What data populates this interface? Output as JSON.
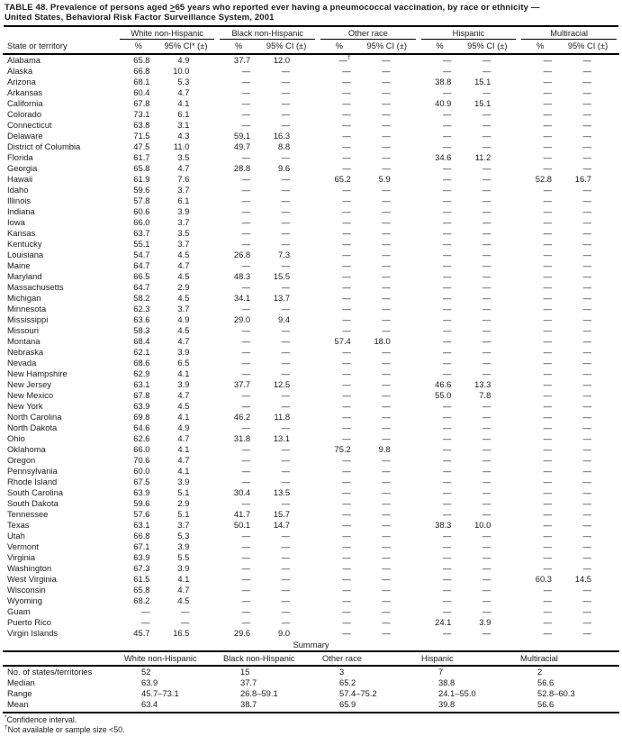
{
  "page_title": {
    "line1_pre": "TABLE 48. Prevalence of persons aged ",
    "line1_geq": ">",
    "line1_post": "65 years who reported ever having a pneumococcal vaccination, by race or ethnicity —",
    "line2": "United States, Behavioral Risk Factor Surveillance System, 2001"
  },
  "table": {
    "state_col_header": "State or territory",
    "groups": [
      {
        "label": "White non-Hispanic",
        "pct": "%",
        "ci": "95% CI* (±)"
      },
      {
        "label": "Black non-Hispanic",
        "pct": "%",
        "ci": "95% CI (±)"
      },
      {
        "label": "Other race",
        "pct": "%",
        "ci": "95% CI (±)"
      },
      {
        "label": "Hispanic",
        "pct": "%",
        "ci": "95% CI (±)"
      },
      {
        "label": "Multiracial",
        "pct": "%",
        "ci": "95% CI (±)"
      }
    ],
    "rows": [
      {
        "state": "Alabama",
        "values": [
          "65.8",
          "4.9",
          "37.7",
          "12.0",
          "—†",
          "—",
          "—",
          "—",
          "—",
          "—"
        ]
      },
      {
        "state": "Alaska",
        "values": [
          "66.8",
          "10.0",
          "—",
          "—",
          "—",
          "—",
          "—",
          "—",
          "—",
          "—"
        ]
      },
      {
        "state": "Arizona",
        "values": [
          "68.1",
          "5.3",
          "—",
          "—",
          "—",
          "—",
          "38.8",
          "15.1",
          "—",
          "—"
        ]
      },
      {
        "state": "Arkansas",
        "values": [
          "60.4",
          "4.7",
          "—",
          "—",
          "—",
          "—",
          "—",
          "—",
          "—",
          "—"
        ]
      },
      {
        "state": "California",
        "values": [
          "67.8",
          "4.1",
          "—",
          "—",
          "—",
          "—",
          "40.9",
          "15.1",
          "—",
          "—"
        ]
      },
      {
        "state": "Colorado",
        "values": [
          "73.1",
          "6.1",
          "—",
          "—",
          "—",
          "—",
          "—",
          "—",
          "—",
          "—"
        ]
      },
      {
        "state": "Connecticut",
        "values": [
          "63.8",
          "3.1",
          "—",
          "—",
          "—",
          "—",
          "—",
          "—",
          "—",
          "—"
        ]
      },
      {
        "state": "Delaware",
        "values": [
          "71.5",
          "4.3",
          "59.1",
          "16.3",
          "—",
          "—",
          "—",
          "—",
          "—",
          "—"
        ]
      },
      {
        "state": "District of Columbia",
        "values": [
          "47.5",
          "11.0",
          "49.7",
          "8.8",
          "—",
          "—",
          "—",
          "—",
          "—",
          "—"
        ]
      },
      {
        "state": "Florida",
        "values": [
          "61.7",
          "3.5",
          "—",
          "—",
          "—",
          "—",
          "34.6",
          "11.2",
          "—",
          "—"
        ]
      },
      {
        "state": "Georgia",
        "values": [
          "65.8",
          "4.7",
          "28.8",
          "9.6",
          "—",
          "—",
          "—",
          "—",
          "—",
          "—"
        ]
      },
      {
        "state": "Hawaii",
        "values": [
          "61.9",
          "7.6",
          "—",
          "—",
          "65.2",
          "5.9",
          "—",
          "—",
          "52.8",
          "16.7"
        ]
      },
      {
        "state": "Idaho",
        "values": [
          "59.6",
          "3.7",
          "—",
          "—",
          "—",
          "—",
          "—",
          "—",
          "—",
          "—"
        ]
      },
      {
        "state": "Illinois",
        "values": [
          "57.8",
          "6.1",
          "—",
          "—",
          "—",
          "—",
          "—",
          "—",
          "—",
          "—"
        ]
      },
      {
        "state": "Indiana",
        "values": [
          "60.6",
          "3.9",
          "—",
          "—",
          "—",
          "—",
          "—",
          "—",
          "—",
          "—"
        ]
      },
      {
        "state": "Iowa",
        "values": [
          "66.0",
          "3.7",
          "—",
          "—",
          "—",
          "—",
          "—",
          "—",
          "—",
          "—"
        ]
      },
      {
        "state": "Kansas",
        "values": [
          "63.7",
          "3.5",
          "—",
          "—",
          "—",
          "—",
          "—",
          "—",
          "—",
          "—"
        ]
      },
      {
        "state": "Kentucky",
        "values": [
          "55.1",
          "3.7",
          "—",
          "—",
          "—",
          "—",
          "—",
          "—",
          "—",
          "—"
        ]
      },
      {
        "state": "Louisiana",
        "values": [
          "54.7",
          "4.5",
          "26.8",
          "7.3",
          "—",
          "—",
          "—",
          "—",
          "—",
          "—"
        ]
      },
      {
        "state": "Maine",
        "values": [
          "64.7",
          "4.7",
          "—",
          "—",
          "—",
          "—",
          "—",
          "—",
          "—",
          "—"
        ]
      },
      {
        "state": "Maryland",
        "values": [
          "66.5",
          "4.5",
          "48.3",
          "15.5",
          "—",
          "—",
          "—",
          "—",
          "—",
          "—"
        ]
      },
      {
        "state": "Massachusetts",
        "values": [
          "64.7",
          "2.9",
          "—",
          "—",
          "—",
          "—",
          "—",
          "—",
          "—",
          "—"
        ]
      },
      {
        "state": "Michigan",
        "values": [
          "58.2",
          "4.5",
          "34.1",
          "13.7",
          "—",
          "—",
          "—",
          "—",
          "—",
          "—"
        ]
      },
      {
        "state": "Minnesota",
        "values": [
          "62.3",
          "3.7",
          "—",
          "—",
          "—",
          "—",
          "—",
          "—",
          "—",
          "—"
        ]
      },
      {
        "state": "Mississippi",
        "values": [
          "63.6",
          "4.9",
          "29.0",
          "9.4",
          "—",
          "—",
          "—",
          "—",
          "—",
          "—"
        ]
      },
      {
        "state": "Missouri",
        "values": [
          "58.3",
          "4.5",
          "—",
          "—",
          "—",
          "—",
          "—",
          "—",
          "—",
          "—"
        ]
      },
      {
        "state": "Montana",
        "values": [
          "68.4",
          "4.7",
          "—",
          "—",
          "57.4",
          "18.0",
          "—",
          "—",
          "—",
          "—"
        ]
      },
      {
        "state": "Nebraska",
        "values": [
          "62.1",
          "3.9",
          "—",
          "—",
          "—",
          "—",
          "—",
          "—",
          "—",
          "—"
        ]
      },
      {
        "state": "Nevada",
        "values": [
          "68.6",
          "6.5",
          "—",
          "—",
          "—",
          "—",
          "—",
          "—",
          "—",
          "—"
        ]
      },
      {
        "state": "New Hampshire",
        "values": [
          "62.9",
          "4.1",
          "—",
          "—",
          "—",
          "—",
          "—",
          "—",
          "—",
          "—"
        ]
      },
      {
        "state": "New Jersey",
        "values": [
          "63.1",
          "3.9",
          "37.7",
          "12.5",
          "—",
          "—",
          "46.6",
          "13.3",
          "—",
          "—"
        ]
      },
      {
        "state": "New Mexico",
        "values": [
          "67.8",
          "4.7",
          "—",
          "—",
          "—",
          "—",
          "55.0",
          "7.8",
          "—",
          "—"
        ]
      },
      {
        "state": "New York",
        "values": [
          "63.9",
          "4.5",
          "—",
          "—",
          "—",
          "—",
          "—",
          "—",
          "—",
          "—"
        ]
      },
      {
        "state": "North Carolina",
        "values": [
          "69.8",
          "4.1",
          "46.2",
          "11.8",
          "—",
          "—",
          "—",
          "—",
          "—",
          "—"
        ]
      },
      {
        "state": "North Dakota",
        "values": [
          "64.6",
          "4.9",
          "—",
          "—",
          "—",
          "—",
          "—",
          "—",
          "—",
          "—"
        ]
      },
      {
        "state": "Ohio",
        "values": [
          "62.6",
          "4.7",
          "31.8",
          "13.1",
          "—",
          "—",
          "—",
          "—",
          "—",
          "—"
        ]
      },
      {
        "state": "Oklahoma",
        "values": [
          "66.0",
          "4.1",
          "—",
          "—",
          "75.2",
          "9.8",
          "—",
          "—",
          "—",
          "—"
        ]
      },
      {
        "state": "Oregon",
        "values": [
          "70.6",
          "4.7",
          "—",
          "—",
          "—",
          "—",
          "—",
          "—",
          "—",
          "—"
        ]
      },
      {
        "state": "Pennsylvania",
        "values": [
          "60.0",
          "4.1",
          "—",
          "—",
          "—",
          "—",
          "—",
          "—",
          "—",
          "—"
        ]
      },
      {
        "state": "Rhode Island",
        "values": [
          "67.5",
          "3.9",
          "—",
          "—",
          "—",
          "—",
          "—",
          "—",
          "—",
          "—"
        ]
      },
      {
        "state": "South Carolina",
        "values": [
          "63.9",
          "5.1",
          "30.4",
          "13.5",
          "—",
          "—",
          "—",
          "—",
          "—",
          "—"
        ]
      },
      {
        "state": "South Dakota",
        "values": [
          "59.6",
          "2.9",
          "—",
          "—",
          "—",
          "—",
          "—",
          "—",
          "—",
          "—"
        ]
      },
      {
        "state": "Tennessee",
        "values": [
          "57.6",
          "5.1",
          "41.7",
          "15.7",
          "—",
          "—",
          "—",
          "—",
          "—",
          "—"
        ]
      },
      {
        "state": "Texas",
        "values": [
          "63.1",
          "3.7",
          "50.1",
          "14.7",
          "—",
          "—",
          "38.3",
          "10.0",
          "—",
          "—"
        ]
      },
      {
        "state": "Utah",
        "values": [
          "66.8",
          "5.3",
          "—",
          "—",
          "—",
          "—",
          "—",
          "—",
          "—",
          "—"
        ]
      },
      {
        "state": "Vermont",
        "values": [
          "67.1",
          "3.9",
          "—",
          "—",
          "—",
          "—",
          "—",
          "—",
          "—",
          "—"
        ]
      },
      {
        "state": "Virginia",
        "values": [
          "63.9",
          "5.5",
          "—",
          "—",
          "—",
          "—",
          "—",
          "—",
          "—",
          "—"
        ]
      },
      {
        "state": "Washington",
        "values": [
          "67.3",
          "3.9",
          "—",
          "—",
          "—",
          "—",
          "—",
          "—",
          "—",
          "—"
        ]
      },
      {
        "state": "West Virginia",
        "values": [
          "61.5",
          "4.1",
          "—",
          "—",
          "—",
          "—",
          "—",
          "—",
          "60.3",
          "14.5"
        ]
      },
      {
        "state": "Wisconsin",
        "values": [
          "65.8",
          "4.7",
          "—",
          "—",
          "—",
          "—",
          "—",
          "—",
          "—",
          "—"
        ]
      },
      {
        "state": "Wyoming",
        "values": [
          "68.2",
          "4.5",
          "—",
          "—",
          "—",
          "—",
          "—",
          "—",
          "—",
          "—"
        ]
      },
      {
        "state": "Guam",
        "values": [
          "—",
          "—",
          "—",
          "—",
          "—",
          "—",
          "—",
          "—",
          "—",
          "—"
        ]
      },
      {
        "state": "Puerto Rico",
        "values": [
          "—",
          "—",
          "—",
          "—",
          "—",
          "—",
          "24.1",
          "3.9",
          "—",
          "—"
        ]
      },
      {
        "state": "Virgin Islands",
        "values": [
          "45.7",
          "16.5",
          "29.6",
          "9.0",
          "—",
          "—",
          "—",
          "—",
          "—",
          "—"
        ]
      }
    ]
  },
  "summary": {
    "heading": "Summary",
    "columns": [
      "White non-Hispanic",
      "Black non-Hispanic",
      "Other race",
      "Hispanic",
      "Multiracial"
    ],
    "rows": [
      {
        "label": "No. of states/territories",
        "values": [
          "52",
          "15",
          "3",
          "7",
          "2"
        ]
      },
      {
        "label": "Median",
        "values": [
          "63.9",
          "37.7",
          "65.2",
          "38.8",
          "56.6"
        ]
      },
      {
        "label": "Range",
        "values": [
          "45.7–73.1",
          "26.8–59.1",
          "57.4–75.2",
          "24.1–55.0",
          "52.8–60.3"
        ]
      },
      {
        "label": "Mean",
        "values": [
          "63.4",
          "38.7",
          "65.9",
          "39.8",
          "56.6"
        ]
      }
    ]
  },
  "footnotes": [
    {
      "marker": "*",
      "text": "Confidence interval."
    },
    {
      "marker": "†",
      "text": "Not available or sample size <50."
    }
  ]
}
